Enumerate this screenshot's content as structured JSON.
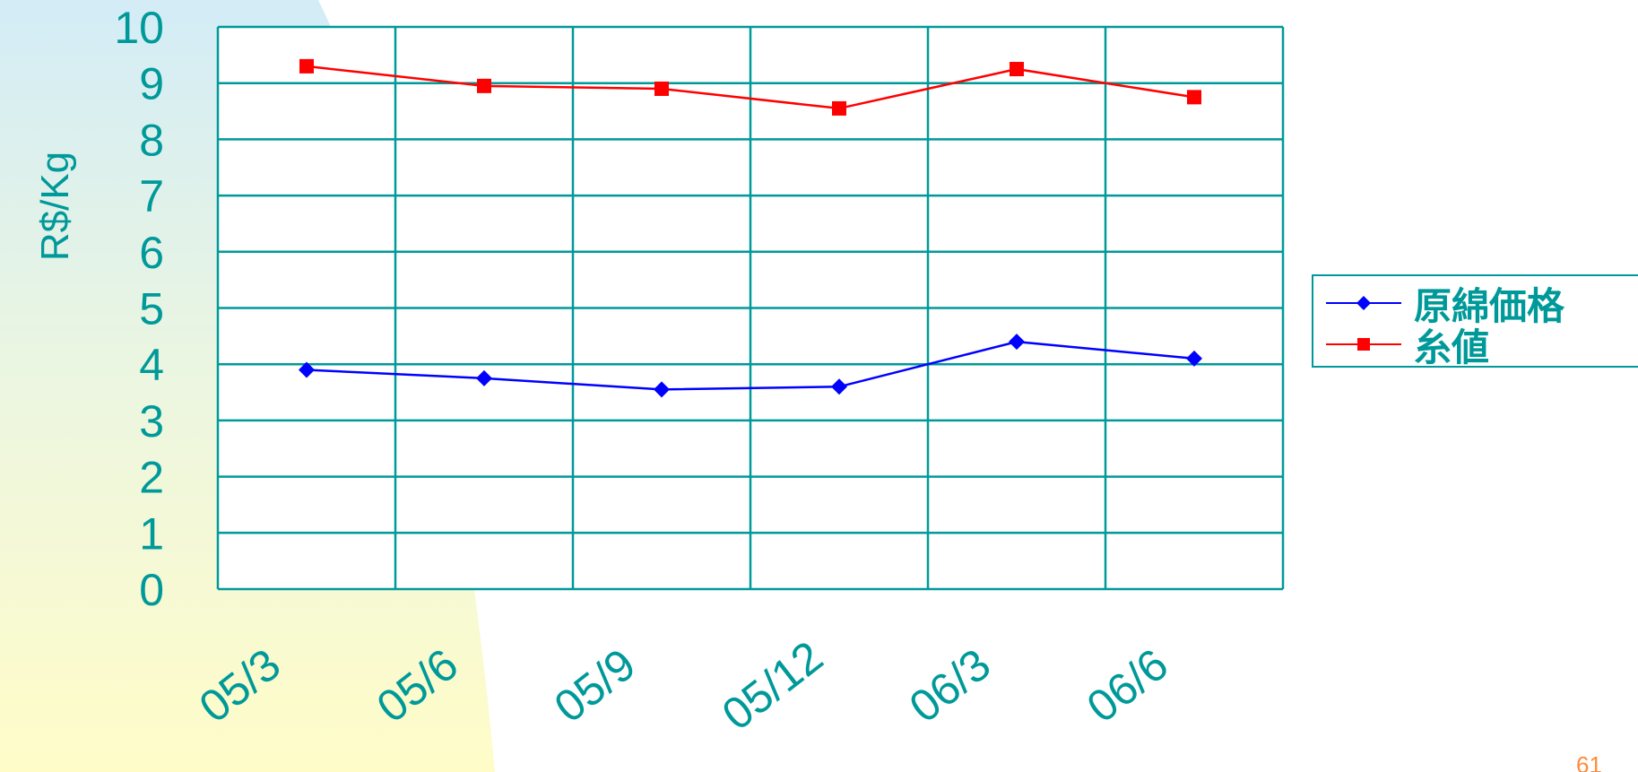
{
  "page_number": "61",
  "chart_data": {
    "type": "line",
    "title": "",
    "xlabel": "",
    "ylabel": "R$/Kg",
    "ylim": [
      0,
      10
    ],
    "y_ticks": [
      "0",
      "1",
      "2",
      "3",
      "4",
      "5",
      "6",
      "7",
      "8",
      "9",
      "10"
    ],
    "categories": [
      "05/3",
      "05/6",
      "05/9",
      "05/12",
      "06/3",
      "06/6"
    ],
    "grid": true,
    "legend_position": "right",
    "series": [
      {
        "name": "原綿価格",
        "color": "#0000ff",
        "marker": "diamond",
        "values": [
          3.9,
          3.75,
          3.55,
          3.6,
          4.4,
          4.1
        ]
      },
      {
        "name": "糸値",
        "color": "#ff0000",
        "marker": "square",
        "values": [
          9.3,
          8.95,
          8.9,
          8.55,
          9.25,
          8.75
        ]
      }
    ],
    "colors": {
      "axis_text": "#009999",
      "grid": "#009999"
    }
  }
}
